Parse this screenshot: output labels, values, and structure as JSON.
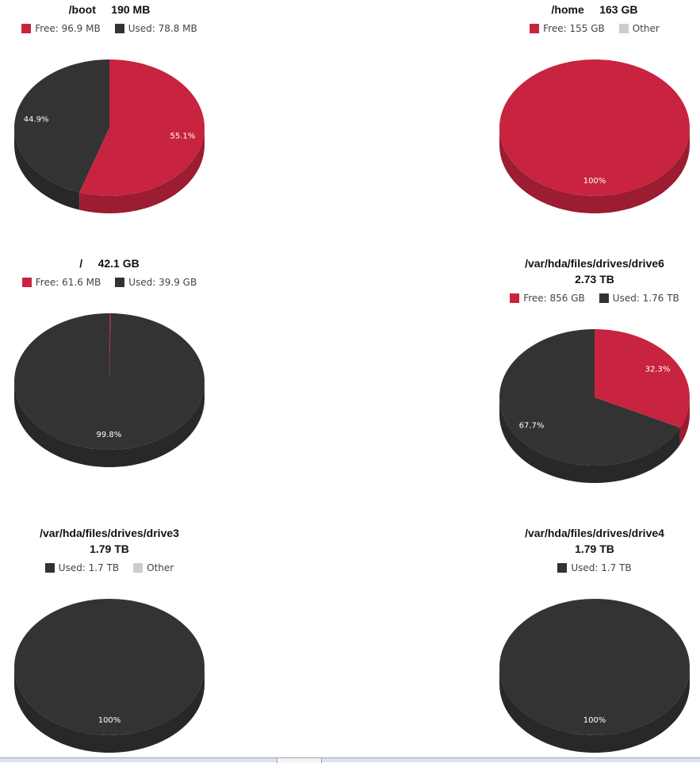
{
  "colors": {
    "free": "#c8243f",
    "used": "#333333",
    "other": "#cccccc"
  },
  "chart_data": [
    {
      "type": "pie",
      "title": "/boot     190 MB",
      "legend": [
        {
          "label": "Free: 96.9 MB",
          "color": "#c8243f"
        },
        {
          "label": "Used: 78.8 MB",
          "color": "#333333"
        }
      ],
      "slices": [
        {
          "label": "55.1%",
          "value": 55.1,
          "color": "#c8243f"
        },
        {
          "label": "44.9%",
          "value": 44.9,
          "color": "#333333"
        }
      ]
    },
    {
      "type": "pie",
      "title": "/home     163 GB",
      "legend": [
        {
          "label": "Free: 155 GB",
          "color": "#c8243f"
        },
        {
          "label": "Other",
          "color": "#cccccc"
        }
      ],
      "slices": [
        {
          "label": "100%",
          "value": 100,
          "color": "#c8243f"
        }
      ]
    },
    {
      "type": "pie",
      "title": "/     42.1 GB",
      "legend": [
        {
          "label": "Free: 61.6 MB",
          "color": "#c8243f"
        },
        {
          "label": "Used: 39.9 GB",
          "color": "#333333"
        }
      ],
      "slices": [
        {
          "label": "",
          "value": 0.2,
          "color": "#c8243f"
        },
        {
          "label": "99.8%",
          "value": 99.8,
          "color": "#333333"
        }
      ]
    },
    {
      "type": "pie",
      "title": "/var/hda/files/drives/drive6\n2.73 TB",
      "legend": [
        {
          "label": "Free: 856 GB",
          "color": "#c8243f"
        },
        {
          "label": "Used: 1.76 TB",
          "color": "#333333"
        }
      ],
      "slices": [
        {
          "label": "32.3%",
          "value": 32.3,
          "color": "#c8243f"
        },
        {
          "label": "67.7%",
          "value": 67.7,
          "color": "#333333"
        }
      ]
    },
    {
      "type": "pie",
      "title": "/var/hda/files/drives/drive3\n1.79 TB",
      "legend": [
        {
          "label": "Used: 1.7 TB",
          "color": "#333333"
        },
        {
          "label": "Other",
          "color": "#cccccc"
        }
      ],
      "slices": [
        {
          "label": "100%",
          "value": 100,
          "color": "#333333"
        }
      ]
    },
    {
      "type": "pie",
      "title": "/var/hda/files/drives/drive4\n1.79 TB",
      "legend": [
        {
          "label": "Used: 1.7 TB",
          "color": "#333333"
        }
      ],
      "slices": [
        {
          "label": "100%",
          "value": 100,
          "color": "#333333"
        }
      ]
    }
  ]
}
